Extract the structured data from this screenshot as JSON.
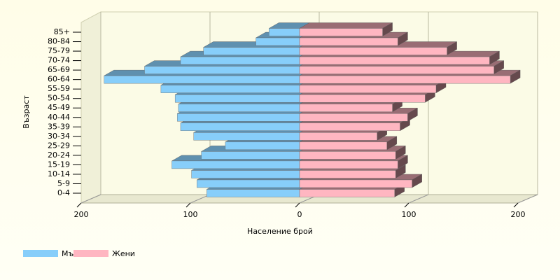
{
  "chart_data": {
    "type": "pyramid",
    "xlabel": "Население брой",
    "ylabel": "Възраст",
    "categories": [
      "0-4",
      "5-9",
      "10-14",
      "15-19",
      "20-24",
      "25-29",
      "30-34",
      "35-39",
      "40-44",
      "45-49",
      "50-54",
      "55-59",
      "60-64",
      "65-69",
      "70-74",
      "75-79",
      "80-84",
      "85+"
    ],
    "series": [
      {
        "name": "Мъже",
        "color": "#87cefa",
        "values": [
          -85,
          -94,
          -99,
          -117,
          -90,
          -68,
          -97,
          -109,
          -112,
          -111,
          -114,
          -127,
          -179,
          -142,
          -109,
          -88,
          -40,
          -28
        ]
      },
      {
        "name": "Жени",
        "color": "#ffb6c1",
        "values": [
          87,
          103,
          88,
          90,
          88,
          80,
          71,
          92,
          99,
          85,
          115,
          125,
          193,
          178,
          174,
          135,
          90,
          76
        ]
      }
    ],
    "xlim": [
      -200,
      200
    ],
    "xticks": [
      {
        "value": -200,
        "label": "200"
      },
      {
        "value": -100,
        "label": "100"
      },
      0,
      100,
      200
    ],
    "grid": true,
    "legend": "bottom-left"
  }
}
